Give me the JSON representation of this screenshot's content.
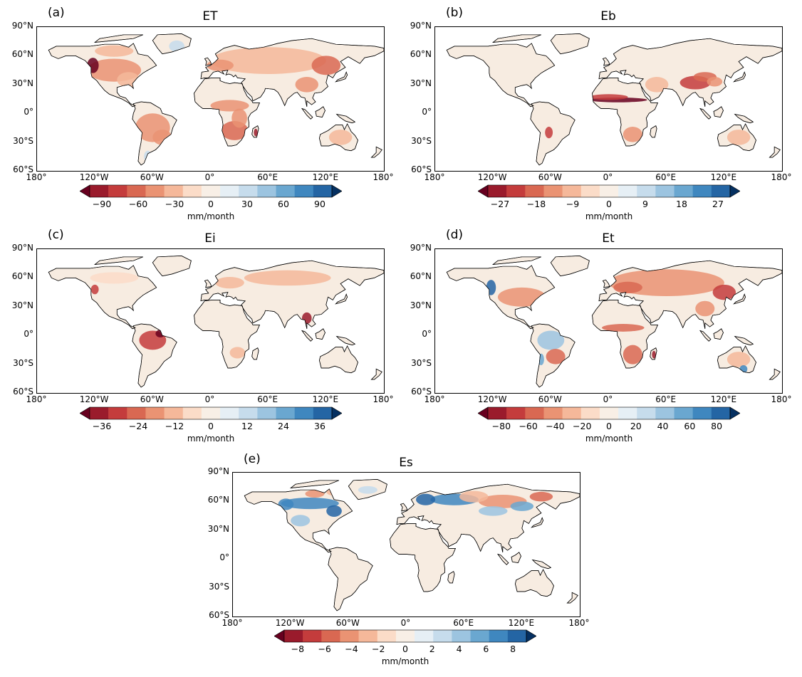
{
  "panels": [
    {
      "id": "a",
      "letter": "(a)",
      "title": "ET",
      "lat_labels": [
        "90°N",
        "60°N",
        "30°N",
        "0°",
        "30°S",
        "60°S"
      ],
      "lon_labels": [
        "180°",
        "120°W",
        "60°W",
        "0°",
        "60°E",
        "120°E",
        "180°"
      ],
      "colorbar": {
        "ticks": [
          "−90",
          "−60",
          "−30",
          "0",
          "30",
          "60",
          "90"
        ],
        "units": "mm/month",
        "min": -100,
        "max": 100
      },
      "pattern": "drying-widespread"
    },
    {
      "id": "b",
      "letter": "(b)",
      "title": "Eb",
      "lat_labels": [
        "90°N",
        "60°N",
        "30°N",
        "0°",
        "30°S",
        "60°S"
      ],
      "lon_labels": [
        "180°",
        "120°W",
        "60°W",
        "0°",
        "60°E",
        "120°E",
        "180°"
      ],
      "colorbar": {
        "ticks": [
          "−27",
          "−18",
          "−9",
          "0",
          "9",
          "18",
          "27"
        ],
        "units": "mm/month",
        "min": -30,
        "max": 30
      },
      "pattern": "sahel-band"
    },
    {
      "id": "c",
      "letter": "(c)",
      "title": "Ei",
      "lat_labels": [
        "90°N",
        "60°N",
        "30°N",
        "0°",
        "30°S",
        "60°S"
      ],
      "lon_labels": [
        "180°",
        "120°W",
        "60°W",
        "0°",
        "60°E",
        "120°E",
        "180°"
      ],
      "colorbar": {
        "ticks": [
          "−36",
          "−24",
          "−12",
          "0",
          "12",
          "24",
          "36"
        ],
        "units": "mm/month",
        "min": -40,
        "max": 40
      },
      "pattern": "amazon-hotspot"
    },
    {
      "id": "d",
      "letter": "(d)",
      "title": "Et",
      "lat_labels": [
        "90°N",
        "60°N",
        "30°N",
        "0°",
        "30°S",
        "60°S"
      ],
      "lon_labels": [
        "180°",
        "120°W",
        "60°W",
        "0°",
        "60°E",
        "120°E",
        "180°"
      ],
      "colorbar": {
        "ticks": [
          "−80",
          "−60",
          "−40",
          "−20",
          "0",
          "20",
          "40",
          "60",
          "80"
        ],
        "units": "mm/month",
        "min": -90,
        "max": 90
      },
      "pattern": "transpiration"
    },
    {
      "id": "e",
      "letter": "(e)",
      "title": "Es",
      "lat_labels": [
        "90°N",
        "60°N",
        "30°N",
        "0°",
        "30°S",
        "60°S"
      ],
      "lon_labels": [
        "180°",
        "120°W",
        "60°W",
        "0°",
        "60°E",
        "120°E",
        "180°"
      ],
      "colorbar": {
        "ticks": [
          "−8",
          "−6",
          "−4",
          "−2",
          "0",
          "2",
          "4",
          "6",
          "8"
        ],
        "units": "mm/month",
        "min": -9,
        "max": 9
      },
      "pattern": "snow-boreal"
    }
  ],
  "colors": {
    "land_base": "#f7ece1",
    "ocean": "#ffffff",
    "colormap": [
      "#67001f",
      "#9a1b2c",
      "#c43c3c",
      "#d96852",
      "#ea9373",
      "#f5b89a",
      "#fbdcc8",
      "#f8efe6",
      "#e6eff5",
      "#c6dcec",
      "#9cc4e0",
      "#6aa7d0",
      "#3f87bf",
      "#2465a4",
      "#053061"
    ]
  }
}
